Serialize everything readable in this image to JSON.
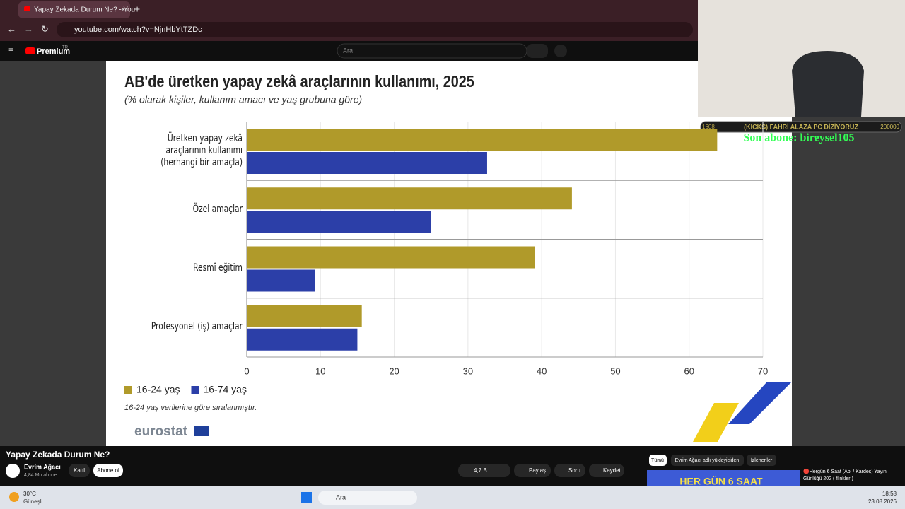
{
  "browser": {
    "tab_title": "Yapay Zekada Durum Ne? - You",
    "url": "youtube.com/watch?v=NjnHbYtTZDc"
  },
  "youtube": {
    "logo": "Premium",
    "region": "TR",
    "search_placeholder": "Ara",
    "video_title": "Yapay Zekada Durum Ne?",
    "channel": "Evrim Ağacı",
    "subscribers": "4,84 Mn abone",
    "join": "Katıl",
    "subscribe": "Abone ol",
    "likes": "4,7 B",
    "share": "Paylaş",
    "ask": "Soru",
    "save": "Kaydet",
    "filters": [
      "Tümü",
      "Evrim Ağacı adlı yükleyiciden",
      "İzlenenler"
    ],
    "rec_thumb": "HER GÜN 6 SAAT",
    "rec_title": "🔴Hergün 6 Saat (Abi / Kardeş) Yayın Günlüğü 202 ( flinkler )"
  },
  "overlay": {
    "goal_left": "1608",
    "goal_text": "(KICKS) FAHRİ ALAZA PC DİZİYORUZ",
    "goal_right": "200000",
    "last_sub": "Son abone: bireysel105"
  },
  "taskbar": {
    "weather_temp": "30°C",
    "weather_desc": "Güneşli",
    "search": "Ara",
    "time": "18:58",
    "date": "23.08.2026"
  },
  "chart_data": {
    "type": "bar",
    "orientation": "horizontal",
    "title": "AB'de üretken yapay zekâ araçlarının kullanımı, 2025",
    "subtitle": "(% olarak kişiler, kullanım amacı ve yaş grubuna göre)",
    "categories": [
      "Üretken yapay zekâ araçlarının kullanımı (herhangi bir amaçla)",
      "Özel amaçlar",
      "Resmî eğitim",
      "Profesyonel (iş) amaçlar"
    ],
    "series": [
      {
        "name": "16-24 yaş",
        "color": "#b09a2a",
        "values": [
          63.8,
          44.1,
          39.1,
          15.6
        ]
      },
      {
        "name": "16-74 yaş",
        "color": "#2c3fa8",
        "values": [
          32.6,
          25.0,
          9.3,
          15.0
        ]
      }
    ],
    "xlim": [
      0,
      70
    ],
    "xticks": [
      0,
      10,
      20,
      30,
      40,
      50,
      60,
      70
    ],
    "grid": true,
    "legend": "bottom-left",
    "note": "16-24 yaş verilerine göre sıralanmıştır.",
    "source": "eurostat"
  }
}
